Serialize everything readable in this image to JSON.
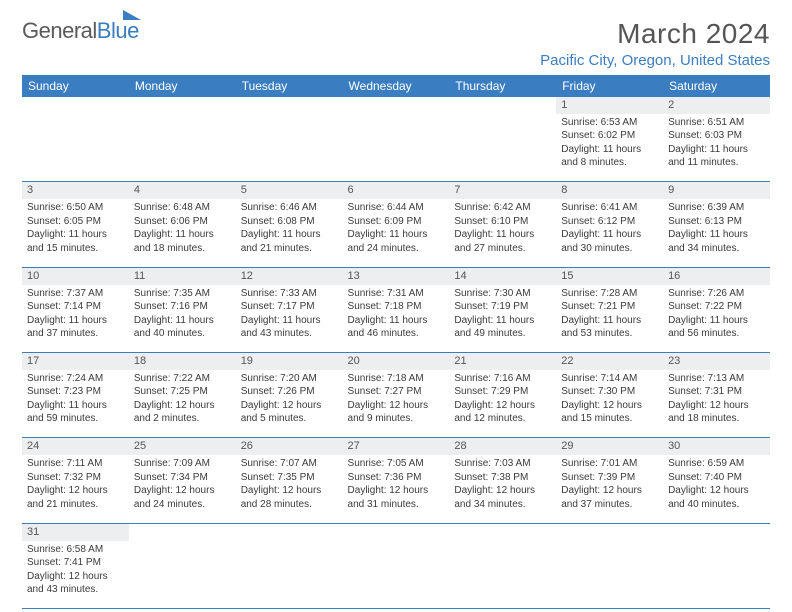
{
  "logo": {
    "general": "General",
    "blue": "Blue"
  },
  "title": "March 2024",
  "location": "Pacific City, Oregon, United States",
  "colors": {
    "brand_blue": "#3b7dc1",
    "header_text": "#555555",
    "body_text": "#3b3b3b",
    "daynum_bg": "#eceeef",
    "background": "#ffffff"
  },
  "typography": {
    "title_fontsize": 28,
    "location_fontsize": 15,
    "weekday_fontsize": 12,
    "daynum_fontsize": 11,
    "cell_fontsize": 10
  },
  "weekdays": [
    "Sunday",
    "Monday",
    "Tuesday",
    "Wednesday",
    "Thursday",
    "Friday",
    "Saturday"
  ],
  "weeks": [
    [
      null,
      null,
      null,
      null,
      null,
      {
        "n": "1",
        "sr": "Sunrise: 6:53 AM",
        "ss": "Sunset: 6:02 PM",
        "dl": "Daylight: 11 hours and 8 minutes."
      },
      {
        "n": "2",
        "sr": "Sunrise: 6:51 AM",
        "ss": "Sunset: 6:03 PM",
        "dl": "Daylight: 11 hours and 11 minutes."
      }
    ],
    [
      {
        "n": "3",
        "sr": "Sunrise: 6:50 AM",
        "ss": "Sunset: 6:05 PM",
        "dl": "Daylight: 11 hours and 15 minutes."
      },
      {
        "n": "4",
        "sr": "Sunrise: 6:48 AM",
        "ss": "Sunset: 6:06 PM",
        "dl": "Daylight: 11 hours and 18 minutes."
      },
      {
        "n": "5",
        "sr": "Sunrise: 6:46 AM",
        "ss": "Sunset: 6:08 PM",
        "dl": "Daylight: 11 hours and 21 minutes."
      },
      {
        "n": "6",
        "sr": "Sunrise: 6:44 AM",
        "ss": "Sunset: 6:09 PM",
        "dl": "Daylight: 11 hours and 24 minutes."
      },
      {
        "n": "7",
        "sr": "Sunrise: 6:42 AM",
        "ss": "Sunset: 6:10 PM",
        "dl": "Daylight: 11 hours and 27 minutes."
      },
      {
        "n": "8",
        "sr": "Sunrise: 6:41 AM",
        "ss": "Sunset: 6:12 PM",
        "dl": "Daylight: 11 hours and 30 minutes."
      },
      {
        "n": "9",
        "sr": "Sunrise: 6:39 AM",
        "ss": "Sunset: 6:13 PM",
        "dl": "Daylight: 11 hours and 34 minutes."
      }
    ],
    [
      {
        "n": "10",
        "sr": "Sunrise: 7:37 AM",
        "ss": "Sunset: 7:14 PM",
        "dl": "Daylight: 11 hours and 37 minutes."
      },
      {
        "n": "11",
        "sr": "Sunrise: 7:35 AM",
        "ss": "Sunset: 7:16 PM",
        "dl": "Daylight: 11 hours and 40 minutes."
      },
      {
        "n": "12",
        "sr": "Sunrise: 7:33 AM",
        "ss": "Sunset: 7:17 PM",
        "dl": "Daylight: 11 hours and 43 minutes."
      },
      {
        "n": "13",
        "sr": "Sunrise: 7:31 AM",
        "ss": "Sunset: 7:18 PM",
        "dl": "Daylight: 11 hours and 46 minutes."
      },
      {
        "n": "14",
        "sr": "Sunrise: 7:30 AM",
        "ss": "Sunset: 7:19 PM",
        "dl": "Daylight: 11 hours and 49 minutes."
      },
      {
        "n": "15",
        "sr": "Sunrise: 7:28 AM",
        "ss": "Sunset: 7:21 PM",
        "dl": "Daylight: 11 hours and 53 minutes."
      },
      {
        "n": "16",
        "sr": "Sunrise: 7:26 AM",
        "ss": "Sunset: 7:22 PM",
        "dl": "Daylight: 11 hours and 56 minutes."
      }
    ],
    [
      {
        "n": "17",
        "sr": "Sunrise: 7:24 AM",
        "ss": "Sunset: 7:23 PM",
        "dl": "Daylight: 11 hours and 59 minutes."
      },
      {
        "n": "18",
        "sr": "Sunrise: 7:22 AM",
        "ss": "Sunset: 7:25 PM",
        "dl": "Daylight: 12 hours and 2 minutes."
      },
      {
        "n": "19",
        "sr": "Sunrise: 7:20 AM",
        "ss": "Sunset: 7:26 PM",
        "dl": "Daylight: 12 hours and 5 minutes."
      },
      {
        "n": "20",
        "sr": "Sunrise: 7:18 AM",
        "ss": "Sunset: 7:27 PM",
        "dl": "Daylight: 12 hours and 9 minutes."
      },
      {
        "n": "21",
        "sr": "Sunrise: 7:16 AM",
        "ss": "Sunset: 7:29 PM",
        "dl": "Daylight: 12 hours and 12 minutes."
      },
      {
        "n": "22",
        "sr": "Sunrise: 7:14 AM",
        "ss": "Sunset: 7:30 PM",
        "dl": "Daylight: 12 hours and 15 minutes."
      },
      {
        "n": "23",
        "sr": "Sunrise: 7:13 AM",
        "ss": "Sunset: 7:31 PM",
        "dl": "Daylight: 12 hours and 18 minutes."
      }
    ],
    [
      {
        "n": "24",
        "sr": "Sunrise: 7:11 AM",
        "ss": "Sunset: 7:32 PM",
        "dl": "Daylight: 12 hours and 21 minutes."
      },
      {
        "n": "25",
        "sr": "Sunrise: 7:09 AM",
        "ss": "Sunset: 7:34 PM",
        "dl": "Daylight: 12 hours and 24 minutes."
      },
      {
        "n": "26",
        "sr": "Sunrise: 7:07 AM",
        "ss": "Sunset: 7:35 PM",
        "dl": "Daylight: 12 hours and 28 minutes."
      },
      {
        "n": "27",
        "sr": "Sunrise: 7:05 AM",
        "ss": "Sunset: 7:36 PM",
        "dl": "Daylight: 12 hours and 31 minutes."
      },
      {
        "n": "28",
        "sr": "Sunrise: 7:03 AM",
        "ss": "Sunset: 7:38 PM",
        "dl": "Daylight: 12 hours and 34 minutes."
      },
      {
        "n": "29",
        "sr": "Sunrise: 7:01 AM",
        "ss": "Sunset: 7:39 PM",
        "dl": "Daylight: 12 hours and 37 minutes."
      },
      {
        "n": "30",
        "sr": "Sunrise: 6:59 AM",
        "ss": "Sunset: 7:40 PM",
        "dl": "Daylight: 12 hours and 40 minutes."
      }
    ],
    [
      {
        "n": "31",
        "sr": "Sunrise: 6:58 AM",
        "ss": "Sunset: 7:41 PM",
        "dl": "Daylight: 12 hours and 43 minutes."
      },
      null,
      null,
      null,
      null,
      null,
      null
    ]
  ]
}
